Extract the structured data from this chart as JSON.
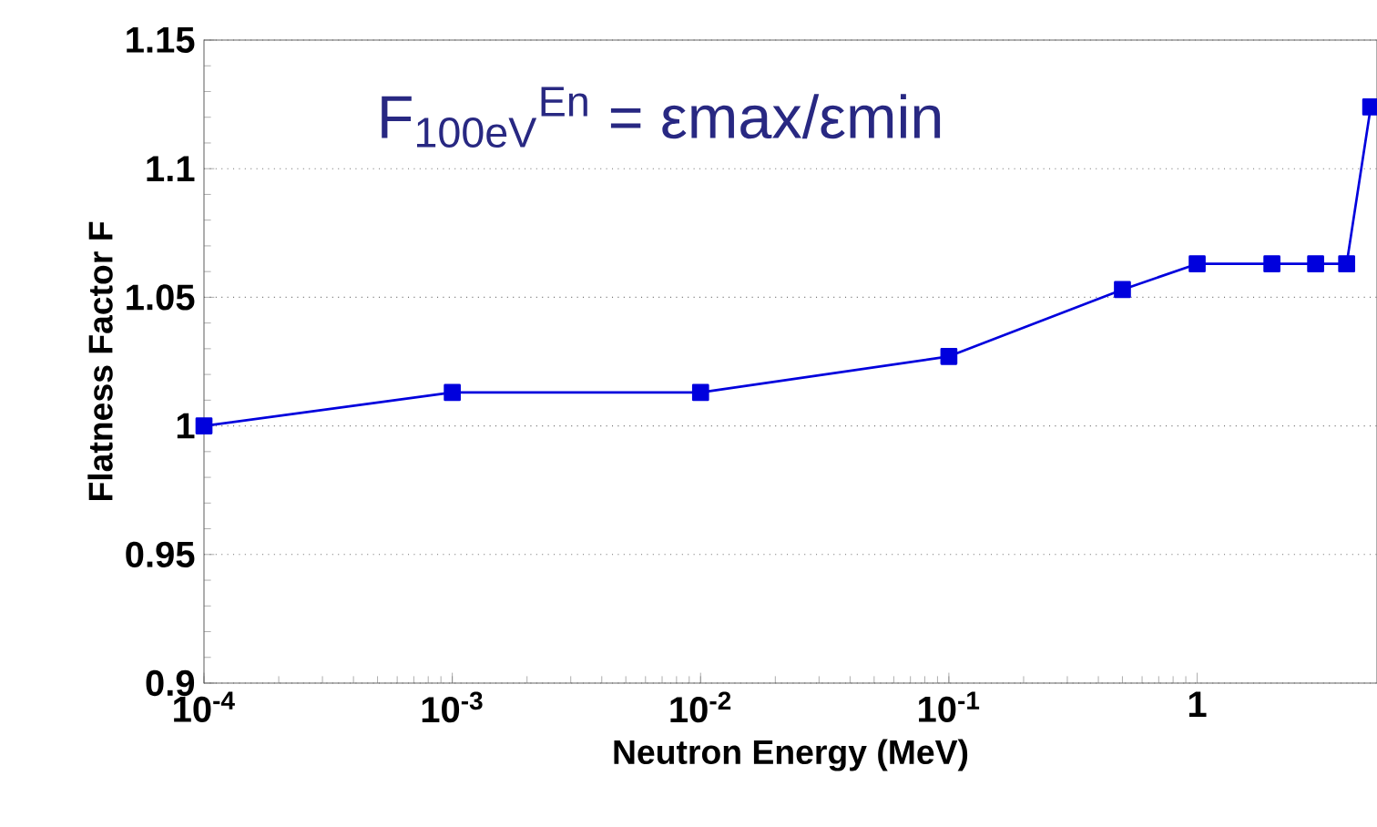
{
  "chart_data": {
    "type": "line",
    "xlabel": "Neutron Energy (MeV)",
    "ylabel": "Flatness Factor F",
    "annotations": [
      "F$_{100eV}$$^{En}$ = εmax/εmin"
    ],
    "log": "x",
    "grid": "y",
    "marker": "square",
    "line_style": "solid",
    "legend": false,
    "xlim": [
      0.0001,
      5.3
    ],
    "ylim": [
      0.9,
      1.15
    ],
    "xticks": [
      {
        "value": 0.0001,
        "label": "10$^{-4}$"
      },
      {
        "value": 0.001,
        "label": "10$^{-3}$"
      },
      {
        "value": 0.01,
        "label": "10$^{-2}$"
      },
      {
        "value": 0.1,
        "label": "10$^{-1}$"
      },
      1
    ],
    "yticks": [
      0.9,
      0.95,
      1,
      1.05,
      1.1,
      1.15
    ],
    "series": [
      {
        "color": "#0000dd",
        "x": [
          0.0001,
          0.001,
          0.01,
          0.1,
          0.5,
          1,
          2,
          3,
          4,
          5
        ],
        "values": [
          1.0,
          1.013,
          1.013,
          1.027,
          1.053,
          1.063,
          1.063,
          1.063,
          1.063,
          1.124
        ]
      }
    ]
  }
}
